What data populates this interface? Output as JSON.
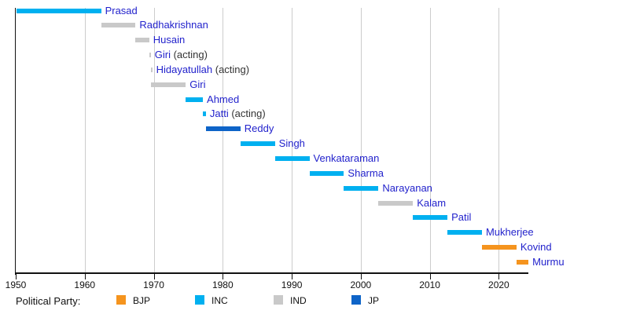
{
  "chart_data": {
    "type": "timeline",
    "legend": {
      "label": "Political Party:",
      "position": "bottom",
      "entries": [
        {
          "name": "BJP",
          "color": "#F5941E"
        },
        {
          "name": "INC",
          "color": "#00B0F0"
        },
        {
          "name": "IND",
          "color": "#C9C9C9"
        },
        {
          "name": "JP",
          "color": "#0E64C8"
        }
      ]
    },
    "x_axis": {
      "ticks": [
        1950,
        1960,
        1970,
        1980,
        1990,
        2000,
        2010,
        2020
      ],
      "range": [
        1950,
        2024.3
      ],
      "gridlines": true
    },
    "bars": [
      {
        "label": "Prasad",
        "suffix": "",
        "party": "INC",
        "start": 1950.07,
        "end": 1962.37
      },
      {
        "label": "Radhakrishnan",
        "suffix": "",
        "party": "IND",
        "start": 1962.37,
        "end": 1967.36
      },
      {
        "label": "Husain",
        "suffix": "",
        "party": "IND",
        "start": 1967.36,
        "end": 1969.34
      },
      {
        "label": "Giri",
        "suffix": " (acting)",
        "party": "IND",
        "start": 1969.34,
        "end": 1969.55
      },
      {
        "label": "Hidayatullah",
        "suffix": " (acting)",
        "party": "IND",
        "start": 1969.55,
        "end": 1969.65
      },
      {
        "label": "Giri",
        "suffix": "",
        "party": "IND",
        "start": 1969.65,
        "end": 1974.64
      },
      {
        "label": "Ahmed",
        "suffix": "",
        "party": "INC",
        "start": 1974.64,
        "end": 1977.12
      },
      {
        "label": "Jatti",
        "suffix": " (acting)",
        "party": "INC",
        "start": 1977.12,
        "end": 1977.56
      },
      {
        "label": "Reddy",
        "suffix": "",
        "party": "JP",
        "start": 1977.56,
        "end": 1982.56
      },
      {
        "label": "Singh",
        "suffix": "",
        "party": "INC",
        "start": 1982.56,
        "end": 1987.56
      },
      {
        "label": "Venkataraman",
        "suffix": "",
        "party": "INC",
        "start": 1987.56,
        "end": 1992.56
      },
      {
        "label": "Sharma",
        "suffix": "",
        "party": "INC",
        "start": 1992.56,
        "end": 1997.56
      },
      {
        "label": "Narayanan",
        "suffix": "",
        "party": "INC",
        "start": 1997.56,
        "end": 2002.56
      },
      {
        "label": "Kalam",
        "suffix": "",
        "party": "IND",
        "start": 2002.56,
        "end": 2007.56
      },
      {
        "label": "Patil",
        "suffix": "",
        "party": "INC",
        "start": 2007.56,
        "end": 2012.56
      },
      {
        "label": "Mukherjee",
        "suffix": "",
        "party": "INC",
        "start": 2012.56,
        "end": 2017.56
      },
      {
        "label": "Kovind",
        "suffix": "",
        "party": "BJP",
        "start": 2017.56,
        "end": 2022.56
      },
      {
        "label": "Murmu",
        "suffix": "",
        "party": "BJP",
        "start": 2022.56,
        "end": 2024.3
      }
    ],
    "colors": {
      "name_text": "#2222CC",
      "acting_text": "#333333",
      "axis": "#111111",
      "gridline": "#CCCCCC"
    }
  }
}
